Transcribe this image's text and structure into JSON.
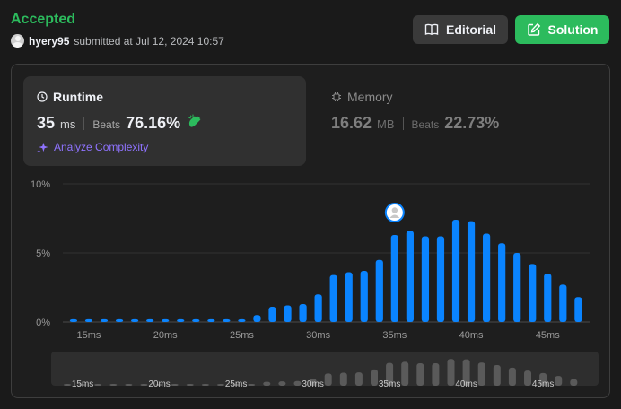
{
  "header": {
    "status": "Accepted",
    "username": "hyery95",
    "submitted_text": "submitted at Jul 12, 2024 10:57",
    "editorial_label": "Editorial",
    "solution_label": "Solution"
  },
  "runtime": {
    "title": "Runtime",
    "value": "35",
    "unit": "ms",
    "beats_label": "Beats",
    "beats": "76.16%",
    "analyze_label": "Analyze Complexity"
  },
  "memory": {
    "title": "Memory",
    "value": "16.62",
    "unit": "MB",
    "beats_label": "Beats",
    "beats": "22.73%"
  },
  "colors": {
    "accepted": "#2cbb5d",
    "bar": "#0a84ff",
    "overview_bar": "#5a5a5a",
    "analyze": "#8f73ff"
  },
  "chart_data": {
    "type": "bar",
    "x": [
      14,
      15,
      16,
      17,
      18,
      19,
      20,
      21,
      22,
      23,
      24,
      25,
      26,
      27,
      28,
      29,
      30,
      31,
      32,
      33,
      34,
      35,
      36,
      37,
      38,
      39,
      40,
      41,
      42,
      43,
      44,
      45,
      46,
      47
    ],
    "values": [
      0.2,
      0.2,
      0.2,
      0.2,
      0.2,
      0.2,
      0.2,
      0.2,
      0.2,
      0.2,
      0.2,
      0.2,
      0.5,
      1.1,
      1.2,
      1.3,
      2.0,
      3.4,
      3.6,
      3.7,
      4.5,
      6.3,
      6.6,
      6.2,
      6.2,
      7.4,
      7.3,
      6.4,
      5.7,
      5.0,
      4.2,
      3.5,
      2.7,
      1.8
    ],
    "x_ticks": [
      "15ms",
      "20ms",
      "25ms",
      "30ms",
      "35ms",
      "40ms",
      "45ms"
    ],
    "x_tick_values": [
      15,
      20,
      25,
      30,
      35,
      40,
      45
    ],
    "y_ticks": [
      "0%",
      "5%",
      "10%"
    ],
    "y_tick_values": [
      0,
      5,
      10
    ],
    "ylim": [
      0,
      10
    ],
    "xlim": [
      13.3,
      47.8
    ],
    "highlight_x": 35,
    "grid": true
  }
}
